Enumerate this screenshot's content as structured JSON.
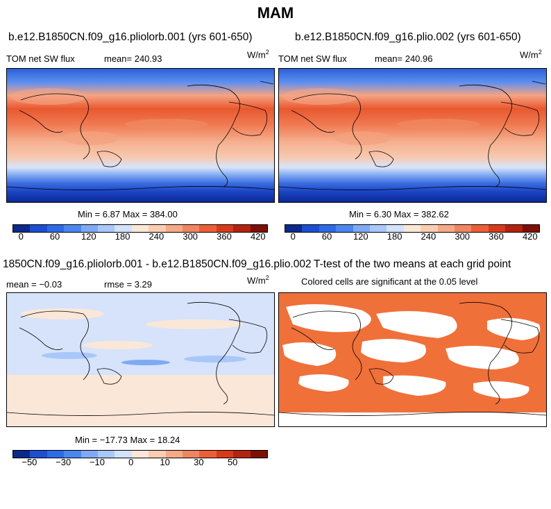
{
  "season": "MAM",
  "panels": {
    "tl": {
      "title": "b.e12.B1850CN.f09_g16.pliolorb.001 (yrs 601-650)",
      "var_label": "TOM net SW flux",
      "mean_label": "mean= 240.93",
      "units": "W/m",
      "units_sup": "2",
      "minmax": "Min =   6.87 Max = 384.00"
    },
    "tr": {
      "title": "b.e12.B1850CN.f09_g16.plio.002 (yrs 601-650)",
      "var_label": "TOM net SW flux",
      "mean_label": "mean= 240.96",
      "units": "W/m",
      "units_sup": "2",
      "minmax": "Min =   6.30 Max = 382.62"
    },
    "bl": {
      "title": "1850CN.f09_g16.pliolorb.001 - b.e12.B1850CN.f09_g16.plio.002",
      "mean_label": "mean =  −0.03",
      "rmse_label": "rmse =   3.29",
      "units": "W/m",
      "units_sup": "2",
      "minmax": "Min = −17.73 Max =  18.24"
    },
    "br": {
      "title": "T-test of the two means at each grid point",
      "subtitle": "Colored cells are significant at the 0.05 level",
      "signif_color": "#f0703a"
    }
  },
  "colorbars": {
    "absolute": {
      "colors": [
        "#0a2a8c",
        "#1c4fd1",
        "#2d6ae8",
        "#4a86f0",
        "#7fa9f5",
        "#a9c7f8",
        "#d2e2fb",
        "#fbe7d8",
        "#f9cdb2",
        "#f5a986",
        "#f18561",
        "#ec5f36",
        "#d73a1a",
        "#b22410",
        "#7d1005"
      ],
      "tick_labels": [
        "0",
        "60",
        "120",
        "180",
        "240",
        "300",
        "360",
        "420"
      ]
    },
    "difference": {
      "colors": [
        "#0a2a8c",
        "#1c4fd1",
        "#2d6ae8",
        "#4a86f0",
        "#7fa9f5",
        "#a9c7f8",
        "#d2e2fb",
        "#fbe7d8",
        "#f9cdb2",
        "#f5a986",
        "#f18561",
        "#ec5f36",
        "#d73a1a",
        "#b22410",
        "#7d1005"
      ],
      "tick_labels": [
        "−50",
        "−30",
        "−10",
        "0",
        "10",
        "30",
        "50"
      ]
    }
  }
}
